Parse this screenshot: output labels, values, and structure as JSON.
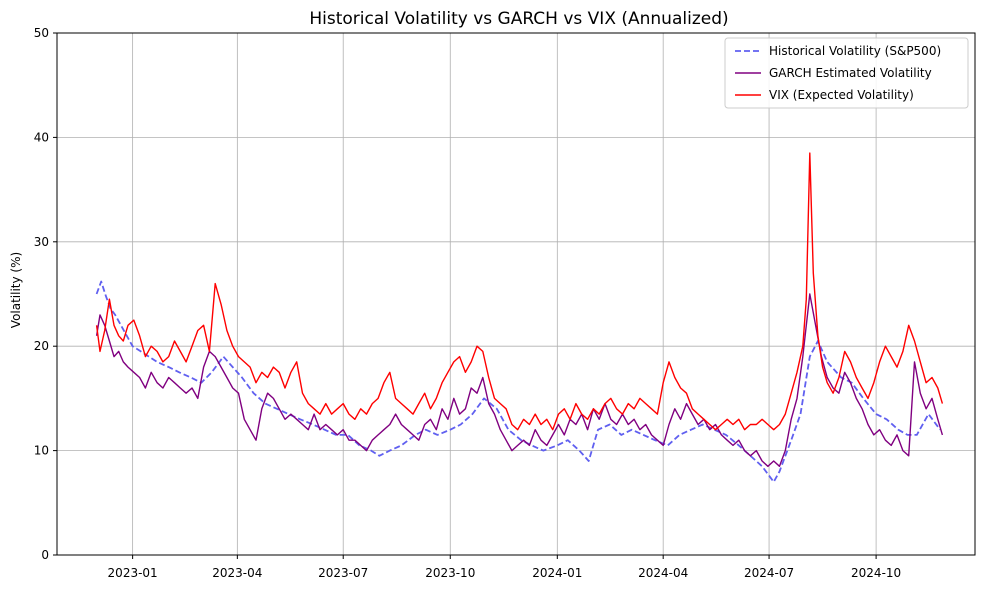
{
  "chart_data": {
    "type": "line",
    "title": "Historical Volatility vs GARCH vs VIX (Annualized)",
    "xlabel": "",
    "ylabel": "Volatility (%)",
    "x_type": "date",
    "xlim": [
      "2022-10-28",
      "2024-12-25"
    ],
    "ylim": [
      0,
      50
    ],
    "x_ticks": [
      "2023-01",
      "2023-04",
      "2023-07",
      "2023-10",
      "2024-01",
      "2024-04",
      "2024-07",
      "2024-10"
    ],
    "y_ticks": [
      0,
      10,
      20,
      30,
      40,
      50
    ],
    "grid": true,
    "legend_position": "top-right",
    "series": [
      {
        "name": "Historical Volatility (S&P500)",
        "color": "#6060f0",
        "style": "dashed",
        "x": [
          "2022-12-01",
          "2022-12-05",
          "2022-12-09",
          "2022-12-13",
          "2022-12-17",
          "2022-12-21",
          "2022-12-27",
          "2023-01-01",
          "2023-01-08",
          "2023-01-15",
          "2023-01-22",
          "2023-02-01",
          "2023-02-10",
          "2023-02-20",
          "2023-03-01",
          "2023-03-10",
          "2023-03-20",
          "2023-03-28",
          "2023-04-05",
          "2023-04-15",
          "2023-04-25",
          "2023-05-05",
          "2023-05-15",
          "2023-05-25",
          "2023-06-05",
          "2023-06-15",
          "2023-06-25",
          "2023-07-05",
          "2023-07-15",
          "2023-07-25",
          "2023-08-01",
          "2023-08-10",
          "2023-08-20",
          "2023-09-01",
          "2023-09-10",
          "2023-09-20",
          "2023-10-01",
          "2023-10-10",
          "2023-10-20",
          "2023-10-30",
          "2023-11-10",
          "2023-11-20",
          "2023-12-01",
          "2023-12-10",
          "2023-12-20",
          "2024-01-01",
          "2024-01-10",
          "2024-01-20",
          "2024-01-28",
          "2024-02-05",
          "2024-02-15",
          "2024-02-25",
          "2024-03-05",
          "2024-03-15",
          "2024-03-25",
          "2024-04-05",
          "2024-04-15",
          "2024-04-25",
          "2024-05-05",
          "2024-05-15",
          "2024-05-25",
          "2024-06-05",
          "2024-06-15",
          "2024-06-25",
          "2024-07-05",
          "2024-07-10",
          "2024-07-20",
          "2024-07-28",
          "2024-08-05",
          "2024-08-12",
          "2024-08-20",
          "2024-09-01",
          "2024-09-10",
          "2024-09-20",
          "2024-10-01",
          "2024-10-10",
          "2024-10-20",
          "2024-10-28",
          "2024-11-05",
          "2024-11-15",
          "2024-11-25"
        ],
        "values": [
          25.0,
          26.2,
          24.8,
          23.6,
          23.0,
          22.2,
          21.0,
          20.0,
          19.5,
          19.0,
          18.5,
          18.0,
          17.5,
          17.0,
          16.5,
          17.5,
          19.0,
          18.0,
          17.0,
          15.5,
          14.5,
          14.0,
          13.5,
          13.0,
          12.5,
          12.0,
          11.5,
          11.5,
          10.5,
          10.0,
          9.5,
          10.0,
          10.5,
          11.5,
          12.0,
          11.5,
          12.0,
          12.5,
          13.5,
          15.0,
          14.0,
          12.0,
          11.0,
          10.5,
          10.0,
          10.5,
          11.0,
          10.0,
          9.0,
          12.0,
          12.5,
          11.5,
          12.0,
          11.5,
          11.0,
          10.5,
          11.5,
          12.0,
          12.5,
          12.0,
          11.5,
          10.5,
          9.5,
          8.5,
          7.0,
          8.0,
          11.0,
          13.5,
          19.0,
          20.5,
          18.5,
          17.0,
          16.5,
          15.0,
          13.5,
          13.0,
          12.0,
          11.5,
          11.5,
          13.5,
          12.0
        ]
      },
      {
        "name": "GARCH Estimated Volatility",
        "color": "#800080",
        "style": "solid",
        "x": [
          "2022-12-01",
          "2022-12-04",
          "2022-12-08",
          "2022-12-12",
          "2022-12-16",
          "2022-12-20",
          "2022-12-24",
          "2022-12-28",
          "2023-01-02",
          "2023-01-07",
          "2023-01-12",
          "2023-01-17",
          "2023-01-22",
          "2023-01-27",
          "2023-02-01",
          "2023-02-06",
          "2023-02-11",
          "2023-02-16",
          "2023-02-21",
          "2023-02-26",
          "2023-03-03",
          "2023-03-08",
          "2023-03-13",
          "2023-03-18",
          "2023-03-23",
          "2023-03-28",
          "2023-04-02",
          "2023-04-07",
          "2023-04-12",
          "2023-04-17",
          "2023-04-22",
          "2023-04-27",
          "2023-05-02",
          "2023-05-07",
          "2023-05-12",
          "2023-05-17",
          "2023-05-22",
          "2023-05-27",
          "2023-06-01",
          "2023-06-06",
          "2023-06-11",
          "2023-06-16",
          "2023-06-21",
          "2023-06-26",
          "2023-07-01",
          "2023-07-06",
          "2023-07-11",
          "2023-07-16",
          "2023-07-21",
          "2023-07-26",
          "2023-07-31",
          "2023-08-05",
          "2023-08-10",
          "2023-08-15",
          "2023-08-20",
          "2023-08-25",
          "2023-08-30",
          "2023-09-04",
          "2023-09-09",
          "2023-09-14",
          "2023-09-19",
          "2023-09-24",
          "2023-09-29",
          "2023-10-04",
          "2023-10-09",
          "2023-10-14",
          "2023-10-19",
          "2023-10-24",
          "2023-10-29",
          "2023-11-03",
          "2023-11-08",
          "2023-11-13",
          "2023-11-18",
          "2023-11-23",
          "2023-11-28",
          "2023-12-03",
          "2023-12-08",
          "2023-12-13",
          "2023-12-18",
          "2023-12-23",
          "2023-12-28",
          "2024-01-02",
          "2024-01-07",
          "2024-01-12",
          "2024-01-17",
          "2024-01-22",
          "2024-01-27",
          "2024-02-01",
          "2024-02-06",
          "2024-02-11",
          "2024-02-16",
          "2024-02-21",
          "2024-02-26",
          "2024-03-02",
          "2024-03-07",
          "2024-03-12",
          "2024-03-17",
          "2024-03-22",
          "2024-03-27",
          "2024-04-01",
          "2024-04-06",
          "2024-04-11",
          "2024-04-16",
          "2024-04-21",
          "2024-04-26",
          "2024-05-01",
          "2024-05-06",
          "2024-05-11",
          "2024-05-16",
          "2024-05-21",
          "2024-05-26",
          "2024-05-31",
          "2024-06-05",
          "2024-06-10",
          "2024-06-15",
          "2024-06-20",
          "2024-06-25",
          "2024-06-30",
          "2024-07-05",
          "2024-07-10",
          "2024-07-15",
          "2024-07-20",
          "2024-07-25",
          "2024-07-30",
          "2024-08-05",
          "2024-08-10",
          "2024-08-15",
          "2024-08-20",
          "2024-08-25",
          "2024-08-30",
          "2024-09-04",
          "2024-09-09",
          "2024-09-14",
          "2024-09-19",
          "2024-09-24",
          "2024-09-29",
          "2024-10-04",
          "2024-10-09",
          "2024-10-14",
          "2024-10-19",
          "2024-10-24",
          "2024-10-29",
          "2024-11-03",
          "2024-11-08",
          "2024-11-13",
          "2024-11-18",
          "2024-11-23",
          "2024-11-27"
        ],
        "values": [
          21.0,
          23.0,
          22.0,
          20.5,
          19.0,
          19.5,
          18.5,
          18.0,
          17.5,
          17.0,
          16.0,
          17.5,
          16.5,
          16.0,
          17.0,
          16.5,
          16.0,
          15.5,
          16.0,
          15.0,
          18.0,
          19.5,
          19.0,
          18.0,
          17.0,
          16.0,
          15.5,
          13.0,
          12.0,
          11.0,
          14.0,
          15.5,
          15.0,
          14.0,
          13.0,
          13.5,
          13.0,
          12.5,
          12.0,
          13.5,
          12.0,
          12.5,
          12.0,
          11.5,
          12.0,
          11.0,
          11.0,
          10.5,
          10.0,
          11.0,
          11.5,
          12.0,
          12.5,
          13.5,
          12.5,
          12.0,
          11.5,
          11.0,
          12.5,
          13.0,
          12.0,
          14.0,
          13.0,
          15.0,
          13.5,
          14.0,
          16.0,
          15.5,
          17.0,
          14.5,
          13.5,
          12.0,
          11.0,
          10.0,
          10.5,
          11.0,
          10.5,
          12.0,
          11.0,
          10.5,
          11.5,
          12.5,
          11.5,
          13.0,
          12.5,
          13.5,
          12.0,
          14.0,
          13.0,
          14.5,
          13.0,
          12.5,
          13.5,
          12.5,
          13.0,
          12.0,
          12.5,
          11.5,
          11.0,
          10.5,
          12.5,
          14.0,
          13.0,
          14.5,
          13.5,
          12.5,
          13.0,
          12.0,
          12.5,
          11.5,
          11.0,
          10.5,
          11.0,
          10.0,
          9.5,
          10.0,
          9.0,
          8.5,
          9.0,
          8.5,
          10.0,
          13.0,
          15.0,
          19.0,
          25.0,
          22.0,
          19.0,
          17.0,
          16.0,
          15.5,
          17.5,
          16.5,
          15.0,
          14.0,
          12.5,
          11.5,
          12.0,
          11.0,
          10.5,
          11.5,
          10.0,
          9.5,
          18.5,
          15.5,
          14.0,
          15.0,
          13.0,
          11.5
        ]
      },
      {
        "name": "VIX (Expected Volatility)",
        "color": "#ff0000",
        "style": "solid",
        "x": [
          "2022-12-01",
          "2022-12-04",
          "2022-12-08",
          "2022-12-12",
          "2022-12-16",
          "2022-12-20",
          "2022-12-24",
          "2022-12-28",
          "2023-01-02",
          "2023-01-07",
          "2023-01-12",
          "2023-01-17",
          "2023-01-22",
          "2023-01-27",
          "2023-02-01",
          "2023-02-06",
          "2023-02-11",
          "2023-02-16",
          "2023-02-21",
          "2023-02-26",
          "2023-03-03",
          "2023-03-08",
          "2023-03-13",
          "2023-03-18",
          "2023-03-23",
          "2023-03-28",
          "2023-04-02",
          "2023-04-07",
          "2023-04-12",
          "2023-04-17",
          "2023-04-22",
          "2023-04-27",
          "2023-05-02",
          "2023-05-07",
          "2023-05-12",
          "2023-05-17",
          "2023-05-22",
          "2023-05-27",
          "2023-06-01",
          "2023-06-06",
          "2023-06-11",
          "2023-06-16",
          "2023-06-21",
          "2023-06-26",
          "2023-07-01",
          "2023-07-06",
          "2023-07-11",
          "2023-07-16",
          "2023-07-21",
          "2023-07-26",
          "2023-07-31",
          "2023-08-05",
          "2023-08-10",
          "2023-08-15",
          "2023-08-20",
          "2023-08-25",
          "2023-08-30",
          "2023-09-04",
          "2023-09-09",
          "2023-09-14",
          "2023-09-19",
          "2023-09-24",
          "2023-09-29",
          "2023-10-04",
          "2023-10-09",
          "2023-10-14",
          "2023-10-19",
          "2023-10-24",
          "2023-10-29",
          "2023-11-03",
          "2023-11-08",
          "2023-11-13",
          "2023-11-18",
          "2023-11-23",
          "2023-11-28",
          "2023-12-03",
          "2023-12-08",
          "2023-12-13",
          "2023-12-18",
          "2023-12-23",
          "2023-12-28",
          "2024-01-02",
          "2024-01-07",
          "2024-01-12",
          "2024-01-17",
          "2024-01-22",
          "2024-01-27",
          "2024-02-01",
          "2024-02-06",
          "2024-02-11",
          "2024-02-16",
          "2024-02-21",
          "2024-02-26",
          "2024-03-02",
          "2024-03-07",
          "2024-03-12",
          "2024-03-17",
          "2024-03-22",
          "2024-03-27",
          "2024-04-01",
          "2024-04-06",
          "2024-04-11",
          "2024-04-16",
          "2024-04-21",
          "2024-04-26",
          "2024-05-01",
          "2024-05-06",
          "2024-05-11",
          "2024-05-16",
          "2024-05-21",
          "2024-05-26",
          "2024-05-31",
          "2024-06-05",
          "2024-06-10",
          "2024-06-15",
          "2024-06-20",
          "2024-06-25",
          "2024-06-30",
          "2024-07-05",
          "2024-07-10",
          "2024-07-15",
          "2024-07-20",
          "2024-07-25",
          "2024-07-30",
          "2024-08-02",
          "2024-08-05",
          "2024-08-08",
          "2024-08-12",
          "2024-08-16",
          "2024-08-20",
          "2024-08-25",
          "2024-08-30",
          "2024-09-04",
          "2024-09-09",
          "2024-09-14",
          "2024-09-19",
          "2024-09-24",
          "2024-09-29",
          "2024-10-04",
          "2024-10-09",
          "2024-10-14",
          "2024-10-19",
          "2024-10-24",
          "2024-10-29",
          "2024-11-03",
          "2024-11-08",
          "2024-11-13",
          "2024-11-18",
          "2024-11-23",
          "2024-11-27"
        ],
        "values": [
          22.0,
          19.5,
          21.5,
          24.5,
          22.0,
          21.0,
          20.5,
          22.0,
          22.5,
          21.0,
          19.0,
          20.0,
          19.5,
          18.5,
          19.0,
          20.5,
          19.5,
          18.5,
          20.0,
          21.5,
          22.0,
          19.5,
          26.0,
          24.0,
          21.5,
          20.0,
          19.0,
          18.5,
          18.0,
          16.5,
          17.5,
          17.0,
          18.0,
          17.5,
          16.0,
          17.5,
          18.5,
          15.5,
          14.5,
          14.0,
          13.5,
          14.5,
          13.5,
          14.0,
          14.5,
          13.5,
          13.0,
          14.0,
          13.5,
          14.5,
          15.0,
          16.5,
          17.5,
          15.0,
          14.5,
          14.0,
          13.5,
          14.5,
          15.5,
          14.0,
          15.0,
          16.5,
          17.5,
          18.5,
          19.0,
          17.5,
          18.5,
          20.0,
          19.5,
          17.0,
          15.0,
          14.5,
          14.0,
          12.5,
          12.0,
          13.0,
          12.5,
          13.5,
          12.5,
          13.0,
          12.0,
          13.5,
          14.0,
          13.0,
          14.5,
          13.5,
          13.0,
          14.0,
          13.5,
          14.5,
          15.0,
          14.0,
          13.5,
          14.5,
          14.0,
          15.0,
          14.5,
          14.0,
          13.5,
          16.5,
          18.5,
          17.0,
          16.0,
          15.5,
          14.0,
          13.5,
          13.0,
          12.5,
          12.0,
          12.5,
          13.0,
          12.5,
          13.0,
          12.0,
          12.5,
          12.5,
          13.0,
          12.5,
          12.0,
          12.5,
          13.5,
          15.5,
          17.5,
          20.0,
          24.5,
          38.5,
          27.0,
          21.0,
          18.0,
          16.5,
          15.5,
          17.0,
          19.5,
          18.5,
          17.0,
          16.0,
          15.0,
          16.5,
          18.5,
          20.0,
          19.0,
          18.0,
          19.5,
          22.0,
          20.5,
          18.5,
          16.5,
          17.0,
          16.0,
          14.5
        ]
      }
    ]
  }
}
